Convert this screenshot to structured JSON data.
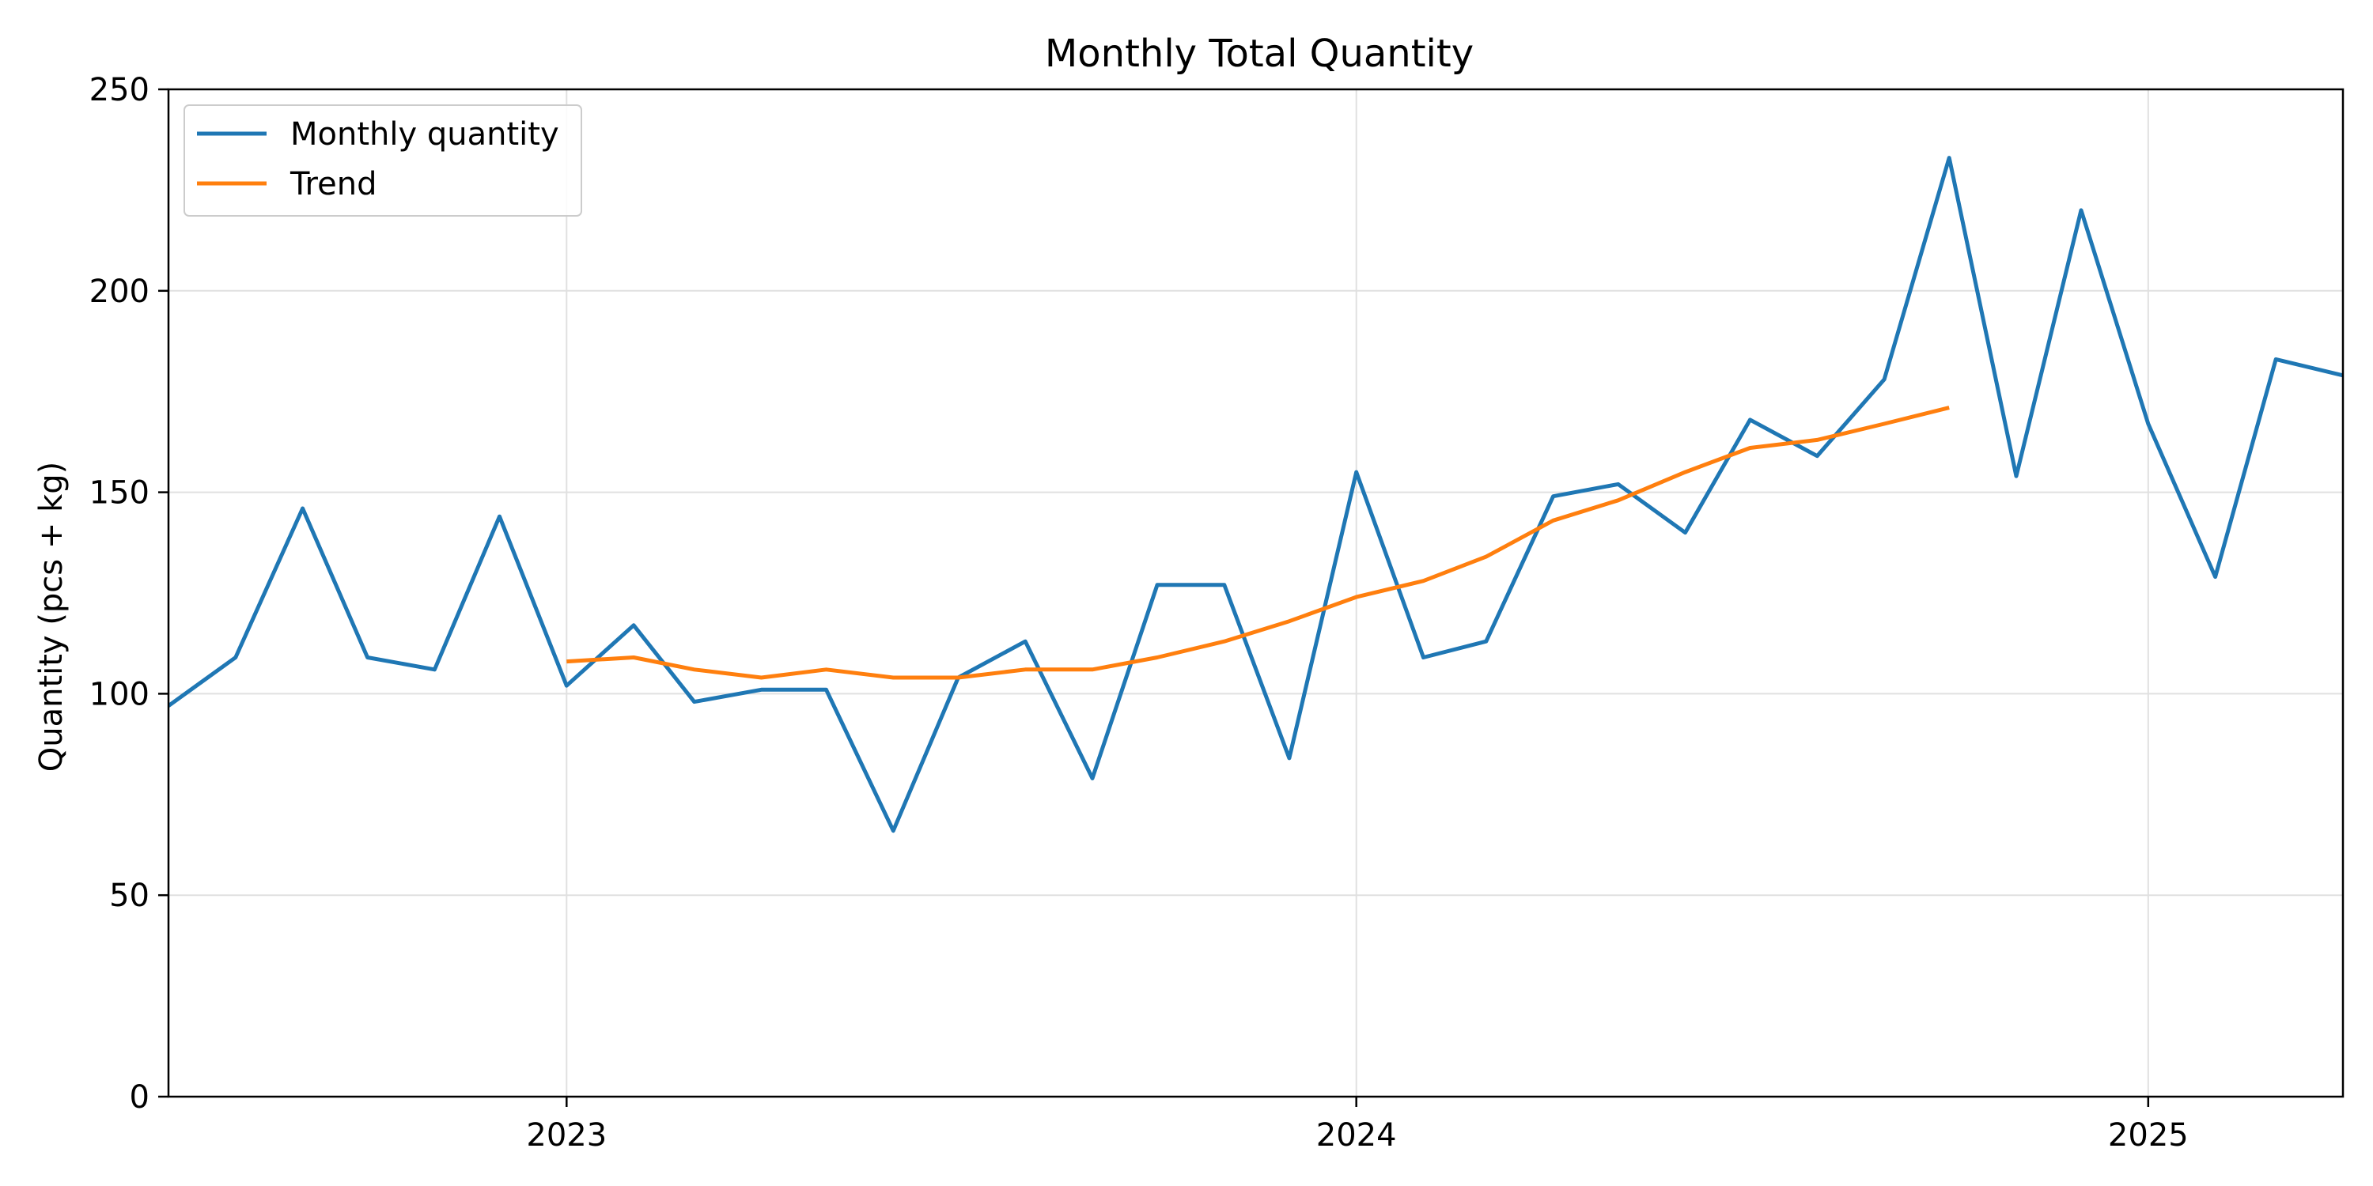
{
  "chart_data": {
    "type": "line",
    "title": "Monthly Total Quantity",
    "xlabel": "",
    "ylabel": "Quantity (pcs + kg)",
    "ylim": [
      0,
      250
    ],
    "xlim": [
      "2022-07-01",
      "2025-04-01"
    ],
    "grid": true,
    "legend_position": "top-left",
    "x_ticks": [
      {
        "value": "2023-01-01",
        "label": "2023"
      },
      {
        "value": "2024-01-01",
        "label": "2024"
      },
      {
        "value": "2025-01-01",
        "label": "2025"
      }
    ],
    "y_ticks": [
      0,
      50,
      100,
      150,
      200,
      250
    ],
    "series": [
      {
        "name": "Monthly quantity",
        "color": "#1f77b4",
        "x": [
          "2022-07-01",
          "2022-08-01",
          "2022-09-01",
          "2022-10-01",
          "2022-11-01",
          "2022-12-01",
          "2023-01-01",
          "2023-02-01",
          "2023-03-01",
          "2023-04-01",
          "2023-05-01",
          "2023-06-01",
          "2023-07-01",
          "2023-08-01",
          "2023-09-01",
          "2023-10-01",
          "2023-11-01",
          "2023-12-01",
          "2024-01-01",
          "2024-02-01",
          "2024-03-01",
          "2024-04-01",
          "2024-05-01",
          "2024-06-01",
          "2024-07-01",
          "2024-08-01",
          "2024-09-01",
          "2024-10-01",
          "2024-11-01",
          "2024-12-01",
          "2025-01-01",
          "2025-02-01",
          "2025-03-01",
          "2025-04-01"
        ],
        "values": [
          97,
          109,
          146,
          109,
          106,
          144,
          102,
          117,
          98,
          101,
          101,
          66,
          104,
          113,
          79,
          127,
          127,
          84,
          155,
          109,
          113,
          149,
          152,
          140,
          168,
          159,
          178,
          233,
          154,
          220,
          167,
          129,
          183,
          179
        ]
      },
      {
        "name": "Trend",
        "color": "#ff7f0e",
        "x": [
          "2023-01-01",
          "2023-02-01",
          "2023-03-01",
          "2023-04-01",
          "2023-05-01",
          "2023-06-01",
          "2023-07-01",
          "2023-08-01",
          "2023-09-01",
          "2023-10-01",
          "2023-11-01",
          "2023-12-01",
          "2024-01-01",
          "2024-02-01",
          "2024-03-01",
          "2024-04-01",
          "2024-05-01",
          "2024-06-01",
          "2024-07-01",
          "2024-08-01",
          "2024-09-01",
          "2024-10-01"
        ],
        "values": [
          108,
          109,
          106,
          104,
          106,
          104,
          104,
          106,
          106,
          109,
          113,
          118,
          124,
          128,
          134,
          143,
          148,
          155,
          161,
          163,
          167,
          171
        ]
      }
    ]
  }
}
